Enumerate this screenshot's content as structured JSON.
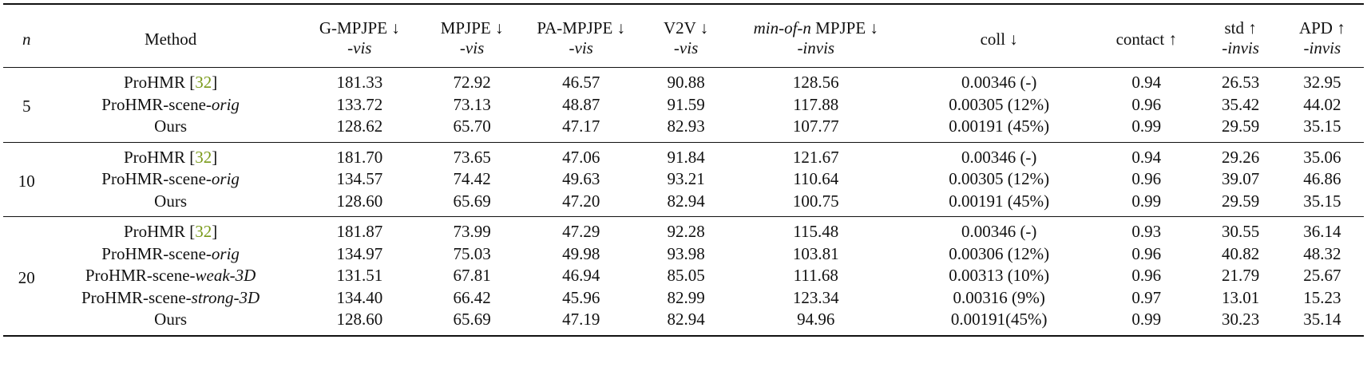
{
  "columns": {
    "n": "n",
    "method": "Method",
    "gmpjpe": "G-MPJPE ↓",
    "gmpjpe_sub": "-vis",
    "mpjpe": "MPJPE ↓",
    "mpjpe_sub": "-vis",
    "pampjpe": "PA-MPJPE ↓",
    "pampjpe_sub": "-vis",
    "v2v": "V2V ↓",
    "v2v_sub": "-vis",
    "minofn_it": "min-of-n",
    "minofn": " MPJPE ↓",
    "minofn_sub": "-invis",
    "coll": "coll ↓",
    "contact": "contact ↑",
    "std": "std ↑",
    "std_sub": "-invis",
    "apd": "APD ↑",
    "apd_sub": "-invis"
  },
  "groups": [
    {
      "n": "5",
      "rows": [
        {
          "m": "ProHMR [",
          "cite": "32",
          "m_end": "]",
          "gm": "181.33",
          "mp": "72.92",
          "pa": "46.57",
          "v2v": "90.88",
          "mon": "128.56",
          "coll": "0.00346 (-)",
          "contact": "0.94",
          "std": "26.53",
          "apd": "32.95"
        },
        {
          "m": "ProHMR-scene-",
          "m_it": "orig",
          "gm": "133.72",
          "mp": "73.13",
          "pa": "48.87",
          "v2v": "91.59",
          "mon": "117.88",
          "coll": "0.00305 (12%)",
          "contact": "0.96",
          "std": "35.42",
          "apd": "44.02"
        },
        {
          "m": "Ours",
          "gm": "128.62",
          "mp": "65.70",
          "pa": "47.17",
          "v2v": "82.93",
          "mon": "107.77",
          "coll": "0.00191 (45%)",
          "contact": "0.99",
          "std": "29.59",
          "apd": "35.15"
        }
      ]
    },
    {
      "n": "10",
      "rows": [
        {
          "m": "ProHMR [",
          "cite": "32",
          "m_end": "]",
          "gm": "181.70",
          "mp": "73.65",
          "pa": "47.06",
          "v2v": "91.84",
          "mon": "121.67",
          "coll": "0.00346 (-)",
          "contact": "0.94",
          "std": "29.26",
          "apd": "35.06"
        },
        {
          "m": "ProHMR-scene-",
          "m_it": "orig",
          "gm": "134.57",
          "mp": "74.42",
          "pa": "49.63",
          "v2v": "93.21",
          "mon": "110.64",
          "coll": "0.00305 (12%)",
          "contact": "0.96",
          "std": "39.07",
          "apd": "46.86"
        },
        {
          "m": "Ours",
          "gm": "128.60",
          "mp": "65.69",
          "pa": "47.20",
          "v2v": "82.94",
          "mon": "100.75",
          "coll": "0.00191 (45%)",
          "contact": "0.99",
          "std": "29.59",
          "apd": "35.15"
        }
      ]
    },
    {
      "n": "20",
      "rows": [
        {
          "m": "ProHMR [",
          "cite": "32",
          "m_end": "]",
          "gm": "181.87",
          "mp": "73.99",
          "pa": "47.29",
          "v2v": "92.28",
          "mon": "115.48",
          "coll": "0.00346 (-)",
          "contact": "0.93",
          "std": "30.55",
          "apd": "36.14"
        },
        {
          "m": "ProHMR-scene-",
          "m_it": "orig",
          "gm": "134.97",
          "mp": "75.03",
          "pa": "49.98",
          "v2v": "93.98",
          "mon": "103.81",
          "coll": "0.00306 (12%)",
          "contact": "0.96",
          "std": "40.82",
          "apd": "48.32"
        },
        {
          "m": "ProHMR-scene-",
          "m_it": "weak-3D",
          "gm": "131.51",
          "mp": "67.81",
          "pa": "46.94",
          "v2v": "85.05",
          "mon": "111.68",
          "coll": "0.00313 (10%)",
          "contact": "0.96",
          "std": "21.79",
          "apd": "25.67"
        },
        {
          "m": "ProHMR-scene-",
          "m_it": "strong-3D",
          "gm": "134.40",
          "mp": "66.42",
          "pa": "45.96",
          "v2v": "82.99",
          "mon": "123.34",
          "coll": "0.00316 (9%)",
          "contact": "0.97",
          "std": "13.01",
          "apd": "15.23"
        },
        {
          "m": "Ours",
          "gm": "128.60",
          "mp": "65.69",
          "pa": "47.19",
          "v2v": "82.94",
          "mon": "94.96",
          "coll": "0.00191(45%)",
          "contact": "0.99",
          "std": "30.23",
          "apd": "35.14"
        }
      ]
    }
  ]
}
